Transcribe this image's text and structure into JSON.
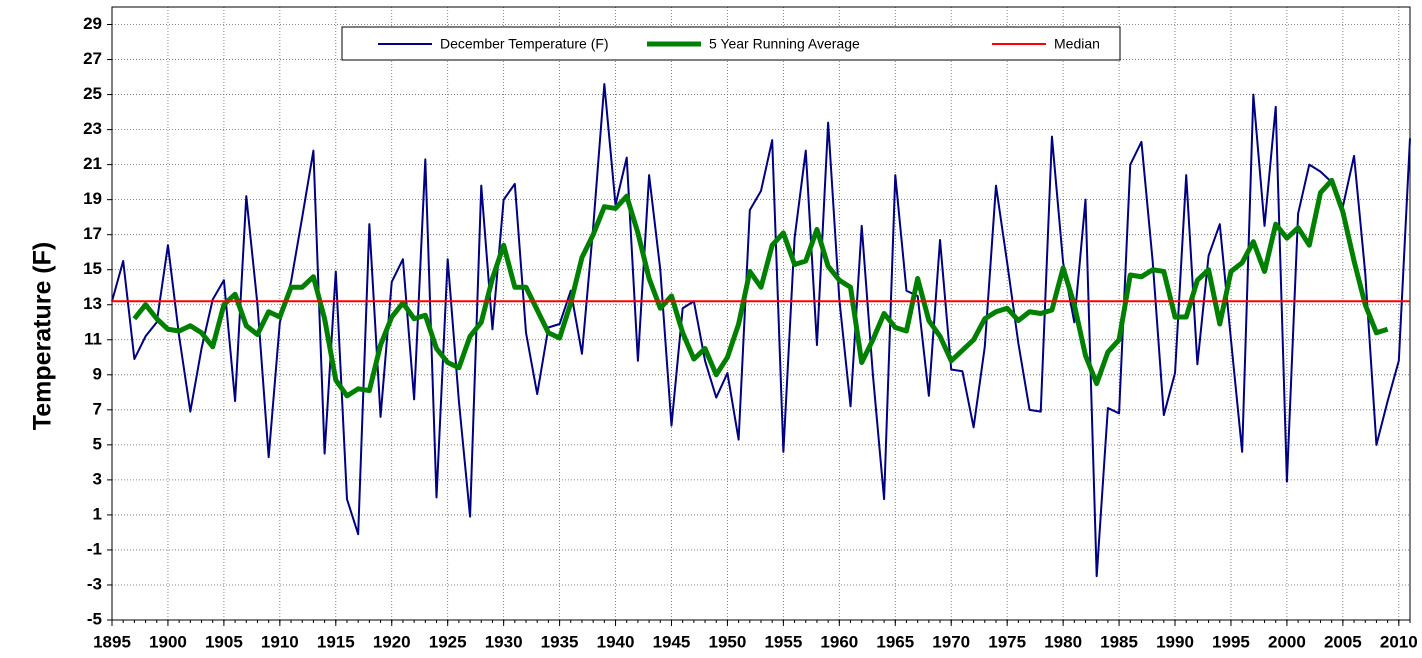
{
  "chart_data": {
    "type": "line",
    "y_label": "Temperature (F)",
    "x": [
      1895,
      1896,
      1897,
      1898,
      1899,
      1900,
      1901,
      1902,
      1903,
      1904,
      1905,
      1906,
      1907,
      1908,
      1909,
      1910,
      1911,
      1912,
      1913,
      1914,
      1915,
      1916,
      1917,
      1918,
      1919,
      1920,
      1921,
      1922,
      1923,
      1924,
      1925,
      1926,
      1927,
      1928,
      1929,
      1930,
      1931,
      1932,
      1933,
      1934,
      1935,
      1936,
      1937,
      1938,
      1939,
      1940,
      1941,
      1942,
      1943,
      1944,
      1945,
      1946,
      1947,
      1948,
      1949,
      1950,
      1951,
      1952,
      1953,
      1954,
      1955,
      1956,
      1957,
      1958,
      1959,
      1960,
      1961,
      1962,
      1963,
      1964,
      1965,
      1966,
      1967,
      1968,
      1969,
      1970,
      1971,
      1972,
      1973,
      1974,
      1975,
      1976,
      1977,
      1978,
      1979,
      1980,
      1981,
      1982,
      1983,
      1984,
      1985,
      1986,
      1987,
      1988,
      1989,
      1990,
      1991,
      1992,
      1993,
      1994,
      1995,
      1996,
      1997,
      1998,
      1999,
      2000,
      2001,
      2002,
      2003,
      2004,
      2005,
      2006,
      2007,
      2008,
      2009,
      2010,
      2011
    ],
    "series": [
      {
        "name": "December Temperature (F)",
        "color": "#000080",
        "width": 2,
        "values": [
          13.2,
          15.5,
          9.9,
          11.2,
          12.0,
          16.4,
          11.2,
          6.9,
          10.5,
          13.3,
          14.4,
          7.5,
          19.2,
          13.0,
          4.3,
          12.0,
          14.3,
          18.0,
          21.8,
          4.5,
          14.9,
          1.9,
          -0.1,
          17.6,
          6.6,
          14.3,
          15.6,
          7.6,
          21.3,
          2.0,
          15.6,
          7.5,
          0.9,
          19.8,
          11.6,
          19.0,
          19.9,
          11.4,
          7.9,
          11.7,
          11.9,
          13.8,
          10.2,
          17.4,
          25.6,
          18.7,
          21.4,
          9.8,
          20.4,
          15.0,
          6.1,
          12.8,
          13.2,
          9.8,
          7.7,
          9.1,
          5.3,
          18.4,
          19.5,
          22.4,
          4.6,
          16.8,
          21.8,
          10.7,
          23.4,
          13.3,
          7.2,
          17.5,
          9.0,
          1.9,
          20.4,
          13.8,
          13.5,
          7.8,
          16.7,
          9.3,
          9.2,
          6.0,
          10.6,
          19.8,
          15.4,
          10.8,
          7.0,
          6.9,
          22.6,
          15.4,
          12.0,
          19.0,
          -2.5,
          7.1,
          6.8,
          21.0,
          22.3,
          15.5,
          6.7,
          9.1,
          20.4,
          9.6,
          15.8,
          17.6,
          11.0,
          4.6,
          25.0,
          17.5,
          24.3,
          2.9,
          18.2,
          21.0,
          20.6,
          20.0,
          18.6,
          21.5,
          14.8,
          5.0,
          7.5,
          9.8,
          22.5
        ]
      },
      {
        "name": "5 Year Running Average",
        "color": "#008000",
        "width": 5,
        "values": [
          null,
          null,
          12.2,
          13.0,
          12.2,
          11.6,
          11.5,
          11.8,
          11.4,
          10.6,
          13.0,
          13.6,
          11.8,
          11.3,
          12.6,
          12.3,
          14.0,
          14.0,
          14.6,
          12.2,
          8.7,
          7.8,
          8.2,
          8.1,
          10.7,
          12.3,
          13.1,
          12.2,
          12.4,
          10.5,
          9.7,
          9.4,
          11.2,
          12.0,
          14.5,
          16.4,
          14.0,
          14.0,
          12.7,
          11.4,
          11.1,
          13.1,
          15.7,
          17.0,
          18.6,
          18.5,
          19.2,
          17.1,
          14.5,
          12.8,
          13.5,
          11.4,
          9.9,
          10.5,
          9.0,
          10.0,
          11.9,
          14.9,
          14.0,
          16.4,
          17.1,
          15.3,
          15.5,
          17.3,
          15.2,
          14.4,
          14.0,
          9.7,
          11.0,
          12.5,
          11.7,
          11.5,
          14.5,
          12.1,
          11.2,
          9.8,
          10.4,
          11.0,
          12.2,
          12.6,
          12.8,
          12.1,
          12.6,
          12.5,
          12.7,
          15.1,
          13.0,
          10.1,
          8.5,
          10.3,
          11.0,
          14.7,
          14.6,
          15.0,
          14.9,
          12.3,
          12.3,
          14.4,
          15.0,
          11.9,
          14.9,
          15.4,
          16.6,
          14.9,
          17.6,
          16.8,
          17.4,
          16.4,
          19.4,
          20.1,
          18.3,
          15.5,
          13.0,
          11.4,
          11.6,
          null,
          null
        ]
      },
      {
        "name": "Median",
        "color": "#ff0000",
        "width": 2,
        "value": 13.2
      }
    ],
    "xlim": [
      1895,
      2011
    ],
    "xticks": [
      1895,
      1900,
      1905,
      1910,
      1915,
      1920,
      1925,
      1930,
      1935,
      1940,
      1945,
      1950,
      1955,
      1960,
      1965,
      1970,
      1975,
      1980,
      1985,
      1990,
      1995,
      2000,
      2005,
      2010
    ],
    "ylim": [
      -5,
      30
    ],
    "yticks": [
      -5,
      -3,
      -1,
      1,
      3,
      5,
      7,
      9,
      11,
      13,
      15,
      17,
      19,
      21,
      23,
      25,
      27,
      29
    ],
    "grid": true
  }
}
